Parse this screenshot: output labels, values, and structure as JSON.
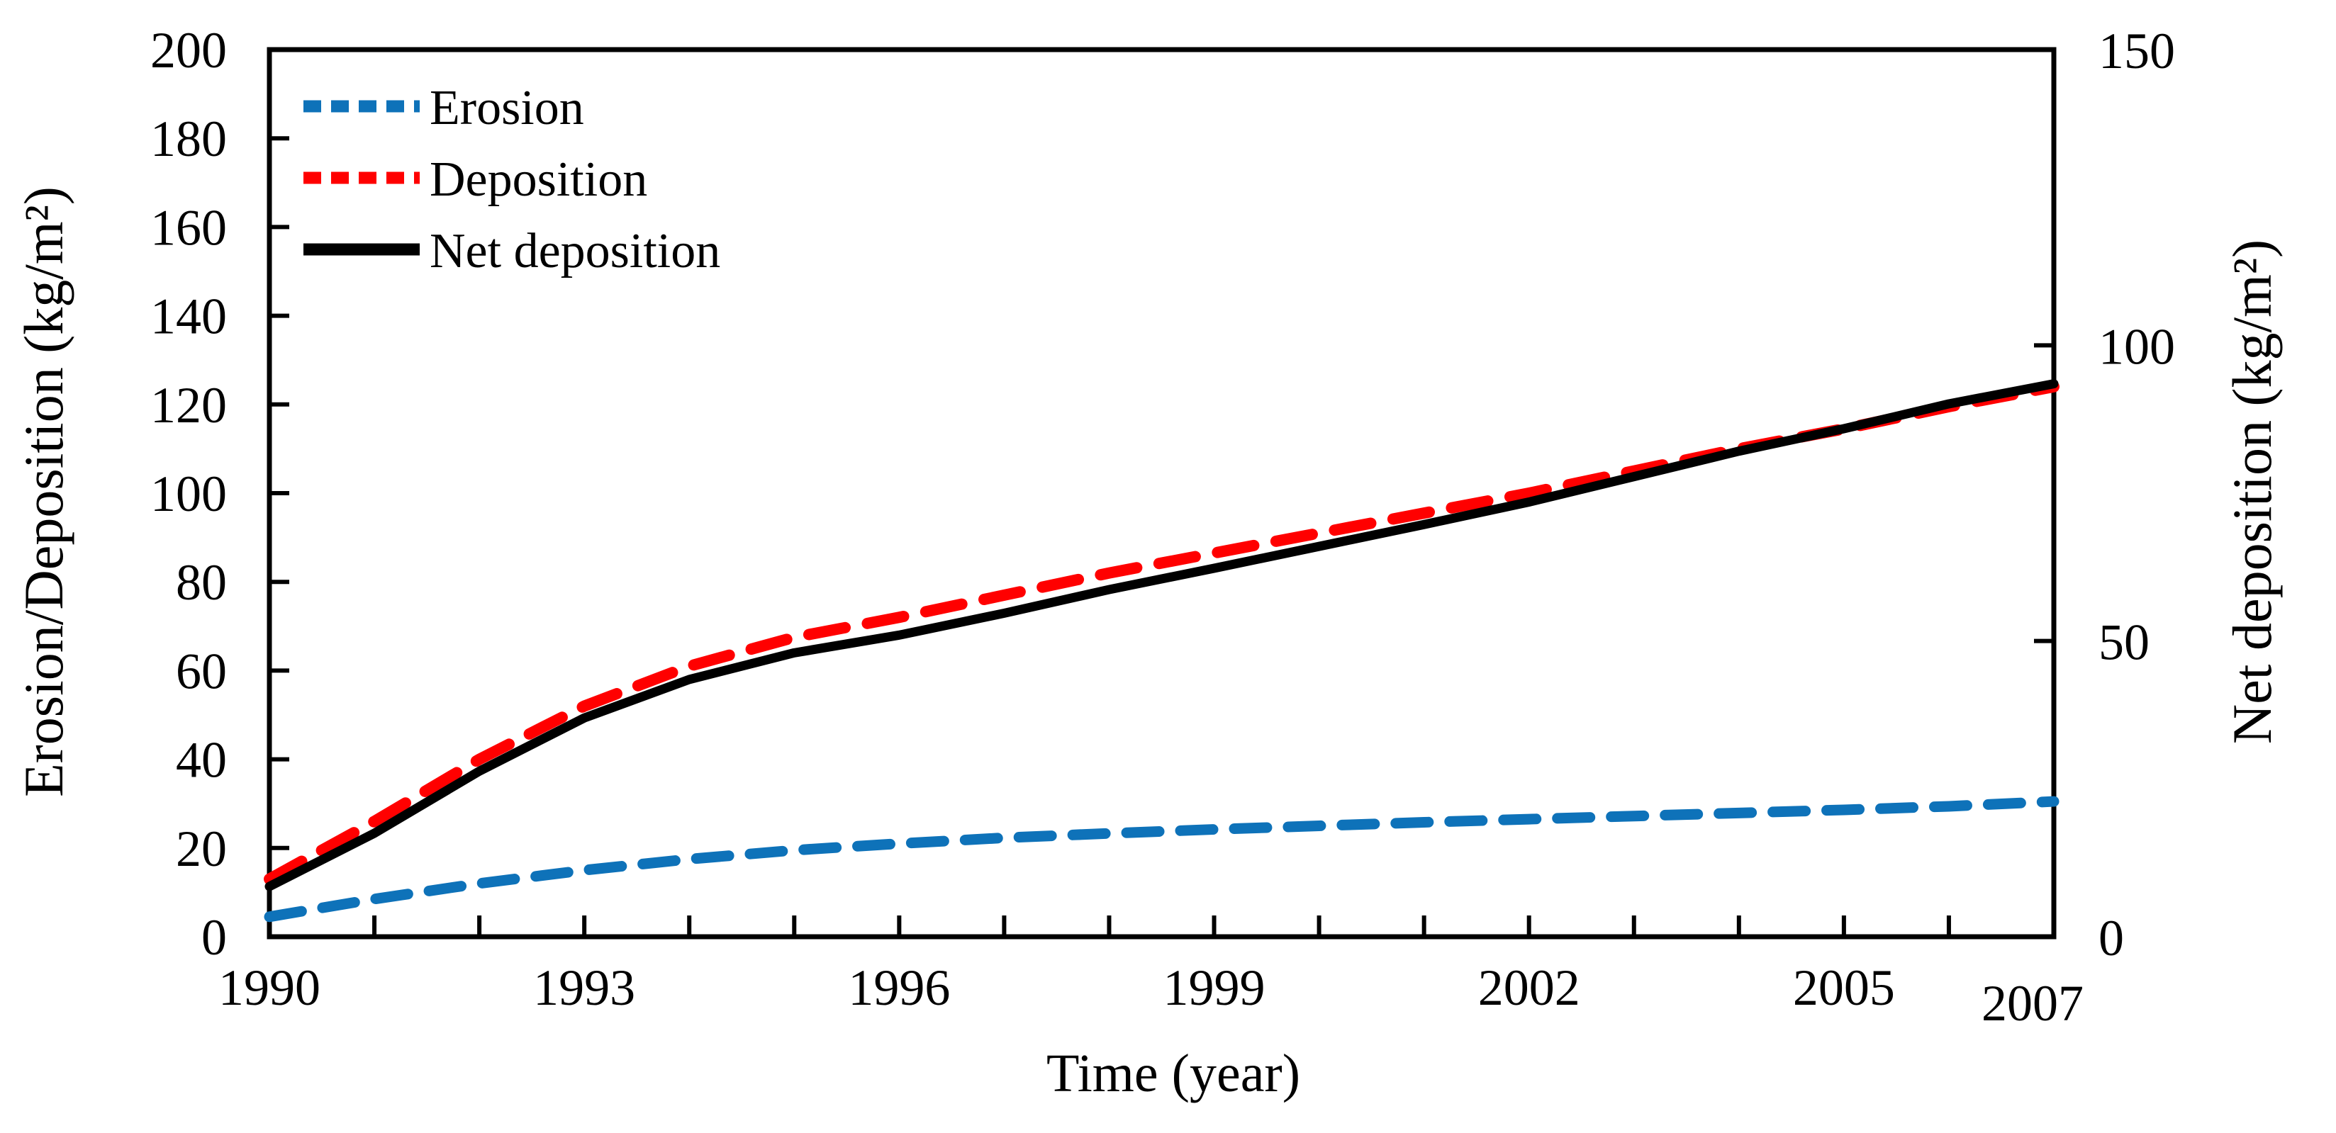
{
  "figure": {
    "background": "#FFFFFF"
  },
  "chart_data": {
    "type": "line",
    "title": "",
    "xlabel": "Time (year)",
    "x": [
      1990,
      1991,
      1992,
      1993,
      1994,
      1995,
      1996,
      1997,
      1998,
      1999,
      2000,
      2001,
      2002,
      2003,
      2004,
      2005,
      2006,
      2007
    ],
    "x_tick_labels": [
      "1990",
      "1993",
      "1996",
      "1999",
      "2002",
      "2005",
      "2007"
    ],
    "x_minor_tick_every_year": true,
    "xlim": [
      1990,
      2007
    ],
    "grid": false,
    "legend_position": "top-left",
    "left_axis": {
      "label": "Erosion/Deposition (kg/m²)",
      "min": 0,
      "max": 200,
      "ticks": [
        "0",
        "20",
        "40",
        "60",
        "80",
        "100",
        "120",
        "140",
        "160",
        "180",
        "200"
      ]
    },
    "right_axis": {
      "label": "Net deposition (kg/m²)",
      "min": 0,
      "max": 150,
      "ticks": [
        "0",
        "50",
        "100",
        "150"
      ]
    },
    "series": [
      {
        "name": "Erosion",
        "axis": "left",
        "color": "#0E72B9",
        "line_style": "dashed",
        "values": [
          4.5,
          8.5,
          12,
          15,
          17.5,
          19.5,
          21,
          22.3,
          23.3,
          24.2,
          25,
          25.8,
          26.5,
          27.2,
          27.9,
          28.6,
          29.4,
          30.5
        ]
      },
      {
        "name": "Deposition",
        "axis": "left",
        "color": "#FF0000",
        "line_style": "dashed",
        "values": [
          13,
          26,
          40,
          52,
          61,
          67.5,
          72,
          77,
          82,
          86.5,
          91,
          95.5,
          100,
          105,
          110,
          114.5,
          119.5,
          124
        ]
      },
      {
        "name": "Net deposition",
        "axis": "right",
        "color": "#000000",
        "line_style": "solid",
        "values": [
          8.5,
          17.5,
          28,
          37,
          43.5,
          48,
          51,
          54.7,
          58.7,
          62.3,
          66,
          69.7,
          73.5,
          77.8,
          82.1,
          85.9,
          90.1,
          93.5
        ]
      }
    ]
  }
}
